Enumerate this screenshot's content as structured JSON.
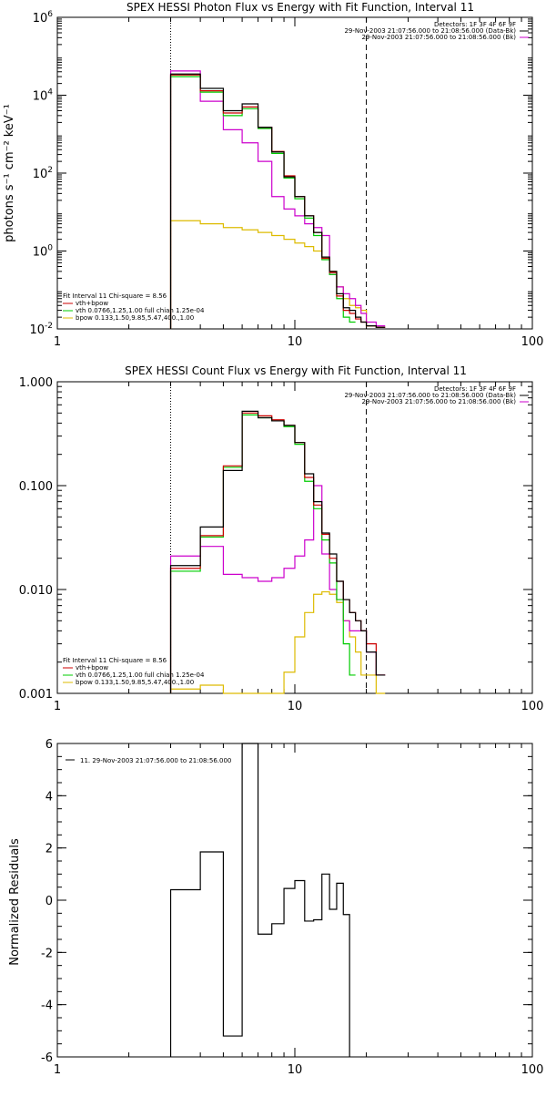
{
  "colors": {
    "data": "#000000",
    "bk": "#cc0000",
    "fit_total": "#cc00cc",
    "vth": "#00cc00",
    "bpow": "#ddbb00"
  },
  "chart_data": [
    {
      "type": "line",
      "title": "SPEX HESSI Photon Flux vs Energy with Fit Function, Interval 11",
      "xlabel": "",
      "ylabel": "photons s⁻¹ cm⁻² keV⁻¹",
      "xscale": "log",
      "yscale": "log",
      "xlim": [
        1,
        100
      ],
      "ylim": [
        0.01,
        1000000
      ],
      "x_ticks": [
        "1",
        "10",
        "100"
      ],
      "y_ticks": [
        "10-2",
        "100",
        "102",
        "104",
        "106"
      ],
      "y_tick_display": [
        {
          "base": "10",
          "exp": "-2"
        },
        {
          "base": "10",
          "exp": "0"
        },
        {
          "base": "10",
          "exp": "2"
        },
        {
          "base": "10",
          "exp": "4"
        },
        {
          "base": "10",
          "exp": "6"
        }
      ],
      "vlines": [
        {
          "x": 3,
          "style": "dotted"
        },
        {
          "x": 20,
          "style": "dashed"
        }
      ],
      "legend_topright": [
        {
          "text": "Detectors: 1F 3F 4F 6F 9F",
          "color": ""
        },
        {
          "text": "29-Nov-2003 21:07:56.000 to 21:08:56.000 (Data-Bk)",
          "color": "#000000"
        },
        {
          "text": "29-Nov-2003 21:07:56.000 to 21:08:56.000 (Bk)",
          "color": "#cc00cc"
        }
      ],
      "legend_bottomleft": [
        {
          "text": "Fit Interval 11    Chi-square = 8.56",
          "color": ""
        },
        {
          "text": "vth+bpow",
          "color": "#cc0000"
        },
        {
          "text": "vth 0.0766,1.25,1.00  full chian 1.25e-04",
          "color": "#00cc00"
        },
        {
          "text": "bpow 0.133,1.50,9.85,5.47,400.,1.00",
          "color": "#ddbb00"
        }
      ],
      "bin_edges": [
        3,
        4,
        5,
        6,
        7,
        8,
        9,
        10,
        11,
        12,
        13,
        14,
        15,
        16,
        17,
        18,
        19,
        20,
        22,
        24
      ],
      "series": [
        {
          "name": "Data-Bk",
          "color": "#000000",
          "values": [
            35000,
            15000,
            4000,
            6000,
            1500,
            350,
            80,
            25,
            8,
            3,
            0.7,
            0.3,
            0.08,
            0.035,
            0.03,
            0.02,
            0.015,
            0.012,
            0.011
          ]
        },
        {
          "name": "vth+bpow",
          "color": "#cc0000",
          "values": [
            33000,
            13000,
            3500,
            5000,
            1500,
            360,
            85,
            25,
            8,
            3,
            0.65,
            0.28,
            0.07,
            0.03,
            0.025,
            0.018,
            0.015,
            0.012,
            0.011
          ]
        },
        {
          "name": "vth",
          "color": "#00cc00",
          "values": [
            30000,
            12000,
            3000,
            4500,
            1400,
            320,
            75,
            22,
            7,
            2.5,
            0.6,
            0.25,
            0.06,
            0.02,
            0.015
          ]
        },
        {
          "name": "Bk",
          "color": "#cc00cc",
          "values": [
            42000,
            7000,
            1300,
            600,
            200,
            25,
            12,
            8,
            5,
            4,
            2.5,
            0.25,
            0.12,
            0.08,
            0.06,
            0.04,
            0.025,
            0.015,
            0.012
          ]
        },
        {
          "name": "bpow",
          "color": "#ddbb00",
          "values": [
            6,
            5,
            4,
            3.5,
            3,
            2.5,
            2,
            1.6,
            1.3,
            1,
            0.7,
            0.3,
            0.12,
            0.06,
            0.04,
            0.035,
            0.03,
            0.012,
            0.011
          ]
        }
      ]
    },
    {
      "type": "line",
      "title": "SPEX HESSI Count Flux vs Energy with Fit Function, Interval 11",
      "xlabel": "",
      "ylabel": "",
      "xscale": "log",
      "yscale": "log",
      "xlim": [
        1,
        100
      ],
      "ylim": [
        0.001,
        1
      ],
      "x_ticks": [
        "1",
        "10",
        "100"
      ],
      "y_ticks": [
        "0.001",
        "0.010",
        "0.100",
        "1.000"
      ],
      "vlines": [
        {
          "x": 3,
          "style": "dotted"
        },
        {
          "x": 20,
          "style": "dashed"
        }
      ],
      "legend_topright": [
        {
          "text": "Detectors: 1F 3F 4F 6F 9F",
          "color": ""
        },
        {
          "text": "29-Nov-2003 21:07:56.000 to 21:08:56.000 (Data-Bk)",
          "color": "#000000"
        },
        {
          "text": "29-Nov-2003 21:07:56.000 to 21:08:56.000 (Bk)",
          "color": "#cc00cc"
        }
      ],
      "legend_bottomleft": [
        {
          "text": "Fit Interval 11    Chi-square = 8.56",
          "color": ""
        },
        {
          "text": "vth+bpow",
          "color": "#cc0000"
        },
        {
          "text": "vth 0.0766,1.25,1.00  full chian 1.25e-04",
          "color": "#00cc00"
        },
        {
          "text": "bpow 0.133,1.50,9.85,5.47,400.,1.00",
          "color": "#ddbb00"
        }
      ],
      "bin_edges": [
        3,
        4,
        5,
        6,
        7,
        8,
        9,
        10,
        11,
        12,
        13,
        14,
        15,
        16,
        17,
        18,
        19,
        20,
        22,
        24
      ],
      "series": [
        {
          "name": "Data-Bk",
          "color": "#000000",
          "values": [
            0.017,
            0.04,
            0.14,
            0.52,
            0.45,
            0.42,
            0.38,
            0.26,
            0.13,
            0.07,
            0.035,
            0.022,
            0.012,
            0.008,
            0.006,
            0.005,
            0.004,
            0.0025,
            0.0015
          ]
        },
        {
          "name": "vth+bpow",
          "color": "#cc0000",
          "values": [
            0.016,
            0.033,
            0.155,
            0.5,
            0.47,
            0.43,
            0.38,
            0.26,
            0.12,
            0.065,
            0.034,
            0.02,
            0.012,
            0.008,
            0.006,
            0.005,
            0.004,
            0.003,
            0.0015
          ]
        },
        {
          "name": "vth",
          "color": "#00cc00",
          "values": [
            0.015,
            0.032,
            0.15,
            0.48,
            0.45,
            0.42,
            0.37,
            0.25,
            0.11,
            0.06,
            0.03,
            0.018,
            0.008,
            0.003,
            0.0015
          ]
        },
        {
          "name": "Bk",
          "color": "#cc00cc",
          "values": [
            0.021,
            0.026,
            0.014,
            0.013,
            0.012,
            0.013,
            0.016,
            0.021,
            0.03,
            0.1,
            0.022,
            0.01,
            0.008,
            0.005,
            0.004,
            0.004,
            0.004,
            0.0025,
            0.0015
          ]
        },
        {
          "name": "bpow",
          "color": "#ddbb00",
          "values": [
            0.0011,
            0.0012,
            0.001,
            0.0009,
            0.0009,
            0.0009,
            0.0016,
            0.0035,
            0.006,
            0.009,
            0.0095,
            0.009,
            0.0075,
            0.005,
            0.0035,
            0.0025,
            0.0015,
            0.0015,
            0.001
          ]
        }
      ]
    },
    {
      "type": "line",
      "title": "",
      "xlabel": "",
      "ylabel": "Normalized Residuals",
      "xscale": "log",
      "yscale": "linear",
      "xlim": [
        1,
        100
      ],
      "ylim": [
        -6,
        6
      ],
      "x_ticks": [
        "1",
        "10",
        "100"
      ],
      "y_ticks": [
        "-6",
        "-4",
        "-2",
        "0",
        "2",
        "4",
        "6"
      ],
      "legend": "11. 29-Nov-2003 21:07:56.000 to 21:08:56.000",
      "bin_edges": [
        3,
        4,
        5,
        6,
        7,
        8,
        9,
        10,
        11,
        12,
        13,
        14,
        15,
        16,
        17,
        18,
        19,
        20
      ],
      "series": [
        {
          "name": "",
          "color": "#000000",
          "values": [
            0.4,
            1.85,
            -5.2,
            6.1,
            -1.3,
            -0.9,
            0.45,
            0.75,
            -0.8,
            -0.75,
            1.0,
            -0.35,
            0.65,
            -0.55
          ]
        }
      ]
    }
  ]
}
